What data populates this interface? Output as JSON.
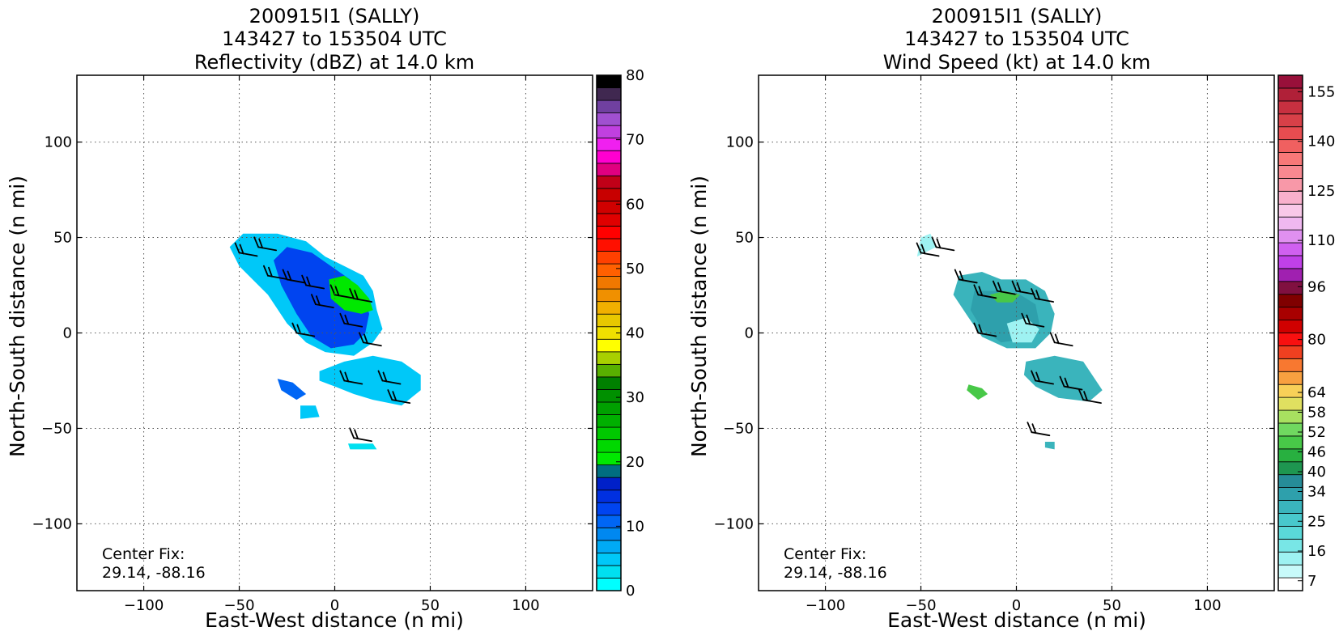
{
  "chart_data": [
    {
      "type": "heatmap",
      "title": [
        "200915I1 (SALLY)",
        "143427 to 153504 UTC",
        "Reflectivity (dBZ) at 14.0 km"
      ],
      "xlabel": "East-West distance (n mi)",
      "ylabel": "North-South distance (n mi)",
      "xlim": [
        -135,
        135
      ],
      "ylim": [
        -135,
        135
      ],
      "xticks": [
        -100,
        -50,
        0,
        50,
        100
      ],
      "yticks": [
        -100,
        -50,
        0,
        50,
        100
      ],
      "xtick_labels": [
        "−100",
        "−50",
        "0",
        "50",
        "100"
      ],
      "ytick_labels": [
        "−100",
        "−50",
        "0",
        "50",
        "100"
      ],
      "grid": true,
      "annotation": [
        "Center Fix:",
        "29.14, -88.16"
      ],
      "colorbar": {
        "min": 0,
        "max": 80,
        "tick_values": [
          0,
          10,
          20,
          30,
          40,
          50,
          60,
          70,
          80
        ],
        "tick_labels": [
          "0",
          "10",
          "20",
          "30",
          "40",
          "50",
          "60",
          "70",
          "80"
        ],
        "colors": [
          "#00ffff",
          "#00e0f0",
          "#00c8f8",
          "#00aaf5",
          "#0088f0",
          "#0066f5",
          "#0044f0",
          "#0030e0",
          "#0020c8",
          "#006e80",
          "#00e800",
          "#00d800",
          "#00c800",
          "#00b000",
          "#00a000",
          "#009000",
          "#008000",
          "#58b000",
          "#a8d000",
          "#ffff00",
          "#f0e000",
          "#e8c800",
          "#f0b000",
          "#f09000",
          "#f07800",
          "#ff6000",
          "#ff4000",
          "#ff1000",
          "#ff0000",
          "#e00000",
          "#d00000",
          "#c80000",
          "#c00018",
          "#e00080",
          "#ff00d0",
          "#f020f0",
          "#c040e0",
          "#a050d0",
          "#7040a0",
          "#402850",
          "#000000"
        ]
      },
      "echo_regions": [
        {
          "color": "#00c8f8",
          "points": [
            [
              -55,
              45
            ],
            [
              -48,
              52
            ],
            [
              -30,
              52
            ],
            [
              -15,
              48
            ],
            [
              -5,
              40
            ],
            [
              5,
              35
            ],
            [
              15,
              30
            ],
            [
              20,
              22
            ],
            [
              22,
              12
            ],
            [
              25,
              2
            ],
            [
              20,
              -5
            ],
            [
              10,
              -12
            ],
            [
              -5,
              -10
            ],
            [
              -15,
              -5
            ],
            [
              -25,
              5
            ],
            [
              -35,
              20
            ],
            [
              -50,
              35
            ]
          ]
        },
        {
          "color": "#0044f0",
          "points": [
            [
              -25,
              45
            ],
            [
              -12,
              42
            ],
            [
              -2,
              35
            ],
            [
              8,
              28
            ],
            [
              15,
              20
            ],
            [
              18,
              10
            ],
            [
              16,
              0
            ],
            [
              10,
              -6
            ],
            [
              -2,
              -8
            ],
            [
              -12,
              -2
            ],
            [
              -20,
              10
            ],
            [
              -28,
              25
            ],
            [
              -32,
              38
            ]
          ]
        },
        {
          "color": "#00e800",
          "points": [
            [
              -3,
              28
            ],
            [
              5,
              30
            ],
            [
              12,
              25
            ],
            [
              18,
              18
            ],
            [
              20,
              12
            ],
            [
              14,
              10
            ],
            [
              5,
              12
            ],
            [
              -2,
              18
            ]
          ]
        },
        {
          "color": "#00c8f8",
          "points": [
            [
              -8,
              -20
            ],
            [
              5,
              -15
            ],
            [
              20,
              -12
            ],
            [
              35,
              -15
            ],
            [
              45,
              -22
            ],
            [
              45,
              -30
            ],
            [
              35,
              -38
            ],
            [
              20,
              -35
            ],
            [
              10,
              -32
            ],
            [
              0,
              -28
            ],
            [
              -8,
              -25
            ]
          ]
        },
        {
          "color": "#0066f5",
          "points": [
            [
              -30,
              -24
            ],
            [
              -22,
              -26
            ],
            [
              -15,
              -32
            ],
            [
              -20,
              -35
            ],
            [
              -28,
              -30
            ]
          ]
        },
        {
          "color": "#00c8f8",
          "points": [
            [
              -18,
              -38
            ],
            [
              -10,
              -38
            ],
            [
              -8,
              -44
            ],
            [
              -18,
              -45
            ]
          ]
        },
        {
          "color": "#00e0f0",
          "points": [
            [
              7,
              -58
            ],
            [
              20,
              -58
            ],
            [
              22,
              -61
            ],
            [
              8,
              -61
            ]
          ]
        }
      ],
      "barbs": [
        [
          -50,
          42
        ],
        [
          -40,
          45
        ],
        [
          -35,
          30
        ],
        [
          -25,
          28
        ],
        [
          -15,
          25
        ],
        [
          -10,
          15
        ],
        [
          0,
          20
        ],
        [
          10,
          18
        ],
        [
          -20,
          0
        ],
        [
          5,
          5
        ],
        [
          15,
          -5
        ],
        [
          5,
          -25
        ],
        [
          25,
          -25
        ],
        [
          30,
          -35
        ],
        [
          10,
          -55
        ]
      ]
    },
    {
      "type": "heatmap",
      "title": [
        "200915I1 (SALLY)",
        "143427 to 153504 UTC",
        "Wind Speed (kt) at 14.0 km"
      ],
      "xlabel": "East-West distance (n mi)",
      "ylabel": "North-South distance (n mi)",
      "xlim": [
        -135,
        135
      ],
      "ylim": [
        -135,
        135
      ],
      "xticks": [
        -100,
        -50,
        0,
        50,
        100
      ],
      "yticks": [
        -100,
        -50,
        0,
        50,
        100
      ],
      "xtick_labels": [
        "−100",
        "−50",
        "0",
        "50",
        "100"
      ],
      "ytick_labels": [
        "−100",
        "−50",
        "0",
        "50",
        "100"
      ],
      "grid": true,
      "annotation": [
        "Center Fix:",
        "29.14, -88.16"
      ],
      "colorbar": {
        "min": 4,
        "max": 160,
        "tick_values": [
          7,
          16,
          25,
          34,
          40,
          46,
          52,
          58,
          64,
          80,
          96,
          110,
          125,
          140,
          155
        ],
        "tick_labels": [
          "7",
          "16",
          "25",
          "34",
          "40",
          "46",
          "52",
          "58",
          "64",
          "80",
          "96",
          "110",
          "125",
          "140",
          "155"
        ],
        "colors": [
          "#ffffff",
          "#c8fafa",
          "#9ef2f2",
          "#78e6e6",
          "#5ad8d8",
          "#48c8cc",
          "#3ab4bc",
          "#2ea0ac",
          "#268c98",
          "#1e9650",
          "#28b040",
          "#48c848",
          "#70d860",
          "#a8e060",
          "#e0e060",
          "#f8d058",
          "#f8a040",
          "#f87830",
          "#f04020",
          "#f81010",
          "#d00000",
          "#a80000",
          "#800000",
          "#801040",
          "#a020b0",
          "#c040e8",
          "#d060f0",
          "#e090f0",
          "#f0b8f0",
          "#f8c8e8",
          "#f8b0cc",
          "#f898a8",
          "#f88890",
          "#f87878",
          "#f06060",
          "#e84c50",
          "#d84048",
          "#c83040",
          "#b02038",
          "#98103a"
        ]
      },
      "echo_regions": [
        {
          "color": "#9ef2f2",
          "points": [
            [
              -50,
              50
            ],
            [
              -45,
              52
            ],
            [
              -42,
              45
            ],
            [
              -52,
              40
            ]
          ]
        },
        {
          "color": "#3ab4bc",
          "points": [
            [
              -30,
              30
            ],
            [
              -18,
              32
            ],
            [
              -8,
              28
            ],
            [
              5,
              28
            ],
            [
              15,
              22
            ],
            [
              20,
              10
            ],
            [
              18,
              0
            ],
            [
              10,
              -8
            ],
            [
              -5,
              -8
            ],
            [
              -18,
              -2
            ],
            [
              -25,
              8
            ],
            [
              -33,
              20
            ]
          ]
        },
        {
          "color": "#2ea0ac",
          "points": [
            [
              -22,
              22
            ],
            [
              -8,
              22
            ],
            [
              2,
              20
            ],
            [
              10,
              15
            ],
            [
              12,
              5
            ],
            [
              5,
              -3
            ],
            [
              -8,
              -5
            ],
            [
              -18,
              2
            ],
            [
              -24,
              12
            ]
          ]
        },
        {
          "color": "#9ef2f2",
          "points": [
            [
              -5,
              5
            ],
            [
              5,
              8
            ],
            [
              12,
              2
            ],
            [
              8,
              -5
            ],
            [
              -2,
              -5
            ]
          ]
        },
        {
          "color": "#48c848",
          "points": [
            [
              -14,
              20
            ],
            [
              -6,
              22
            ],
            [
              2,
              20
            ],
            [
              -2,
              16
            ],
            [
              -10,
              16
            ]
          ]
        },
        {
          "color": "#3ab4bc",
          "points": [
            [
              5,
              -15
            ],
            [
              20,
              -12
            ],
            [
              35,
              -15
            ],
            [
              45,
              -30
            ],
            [
              38,
              -36
            ],
            [
              22,
              -34
            ],
            [
              10,
              -28
            ],
            [
              4,
              -22
            ]
          ]
        },
        {
          "color": "#48c848",
          "points": [
            [
              -25,
              -27
            ],
            [
              -18,
              -29
            ],
            [
              -15,
              -32
            ],
            [
              -20,
              -35
            ],
            [
              -26,
              -30
            ]
          ]
        },
        {
          "color": "#3ab4bc",
          "points": [
            [
              15,
              -57
            ],
            [
              20,
              -57
            ],
            [
              20,
              -61
            ],
            [
              15,
              -60
            ]
          ]
        }
      ],
      "barbs": [
        [
          -50,
          42
        ],
        [
          -42,
          45
        ],
        [
          -30,
          28
        ],
        [
          -20,
          20
        ],
        [
          -10,
          22
        ],
        [
          0,
          22
        ],
        [
          10,
          18
        ],
        [
          -20,
          0
        ],
        [
          5,
          5
        ],
        [
          20,
          -5
        ],
        [
          10,
          -25
        ],
        [
          25,
          -28
        ],
        [
          35,
          -35
        ],
        [
          8,
          -52
        ]
      ]
    }
  ]
}
